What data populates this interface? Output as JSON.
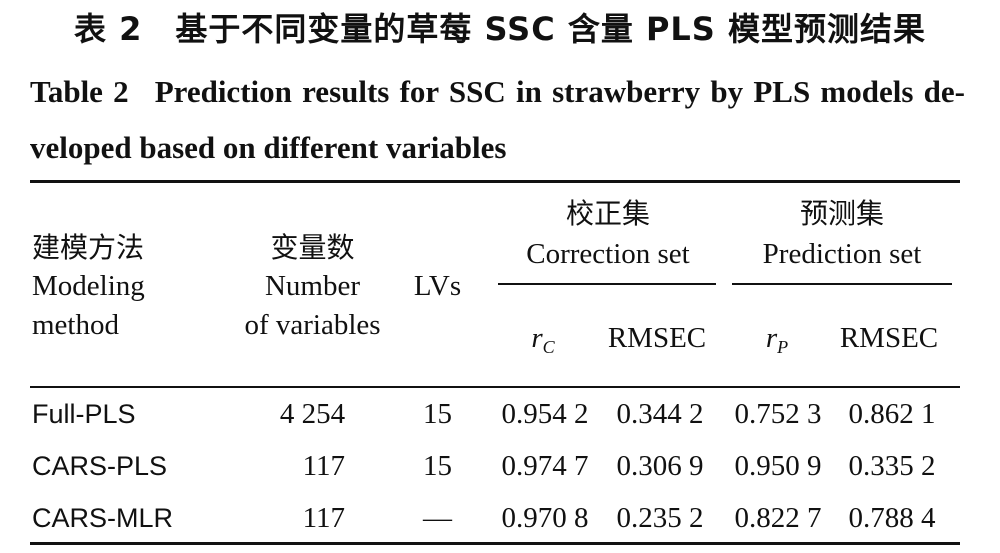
{
  "title_cn": "表 2　基于不同变量的草莓 SSC 含量 PLS 模型预测结果",
  "title_en_label": "Table 2",
  "title_en_text": "Prediction results for SSC in strawberry by PLS models de-veloped based on different variables",
  "header": {
    "method_cn": "建模方法",
    "method_en_1": "Modeling",
    "method_en_2": "method",
    "vars_cn": "变量数",
    "vars_en_1": "Number",
    "vars_en_2": "of variables",
    "lvs": "LVs",
    "correction_cn": "校正集",
    "correction_en": "Correction set",
    "prediction_cn": "预测集",
    "prediction_en": "Prediction set",
    "rc": "r",
    "rc_sub": "C",
    "rmsec": "RMSEC",
    "rp": "r",
    "rp_sub": "P",
    "rmsep": "RMSEC"
  },
  "rows": [
    {
      "method": "Full-PLS",
      "vars": "4 254",
      "lvs": "15",
      "rc": "0.954 2",
      "rmsec": "0.344 2",
      "rp": "0.752 3",
      "rmsep": "0.862 1"
    },
    {
      "method": "CARS-PLS",
      "vars": "117",
      "lvs": "15",
      "rc": "0.974 7",
      "rmsec": "0.306 9",
      "rp": "0.950 9",
      "rmsep": "0.335 2"
    },
    {
      "method": "CARS-MLR",
      "vars": "117",
      "lvs": "—",
      "rc": "0.970 8",
      "rmsec": "0.235 2",
      "rp": "0.822 7",
      "rmsep": "0.788 4"
    }
  ]
}
